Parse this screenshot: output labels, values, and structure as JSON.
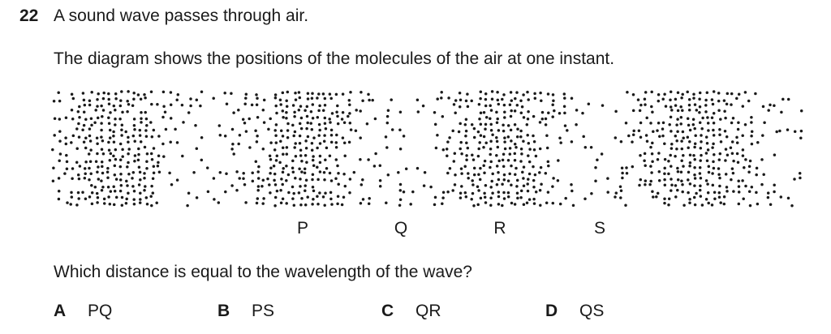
{
  "question": {
    "number": "22",
    "intro": "A sound wave passes through air.",
    "description": "The diagram shows the positions of the molecules of the air at one instant.",
    "prompt": "Which distance is equal to the wavelength of the wave?"
  },
  "diagram": {
    "point_labels": [
      "P",
      "Q",
      "R",
      "S"
    ]
  },
  "options": [
    {
      "letter": "A",
      "text": "PQ"
    },
    {
      "letter": "B",
      "text": "PS"
    },
    {
      "letter": "C",
      "text": "QR"
    },
    {
      "letter": "D",
      "text": "QS"
    }
  ]
}
